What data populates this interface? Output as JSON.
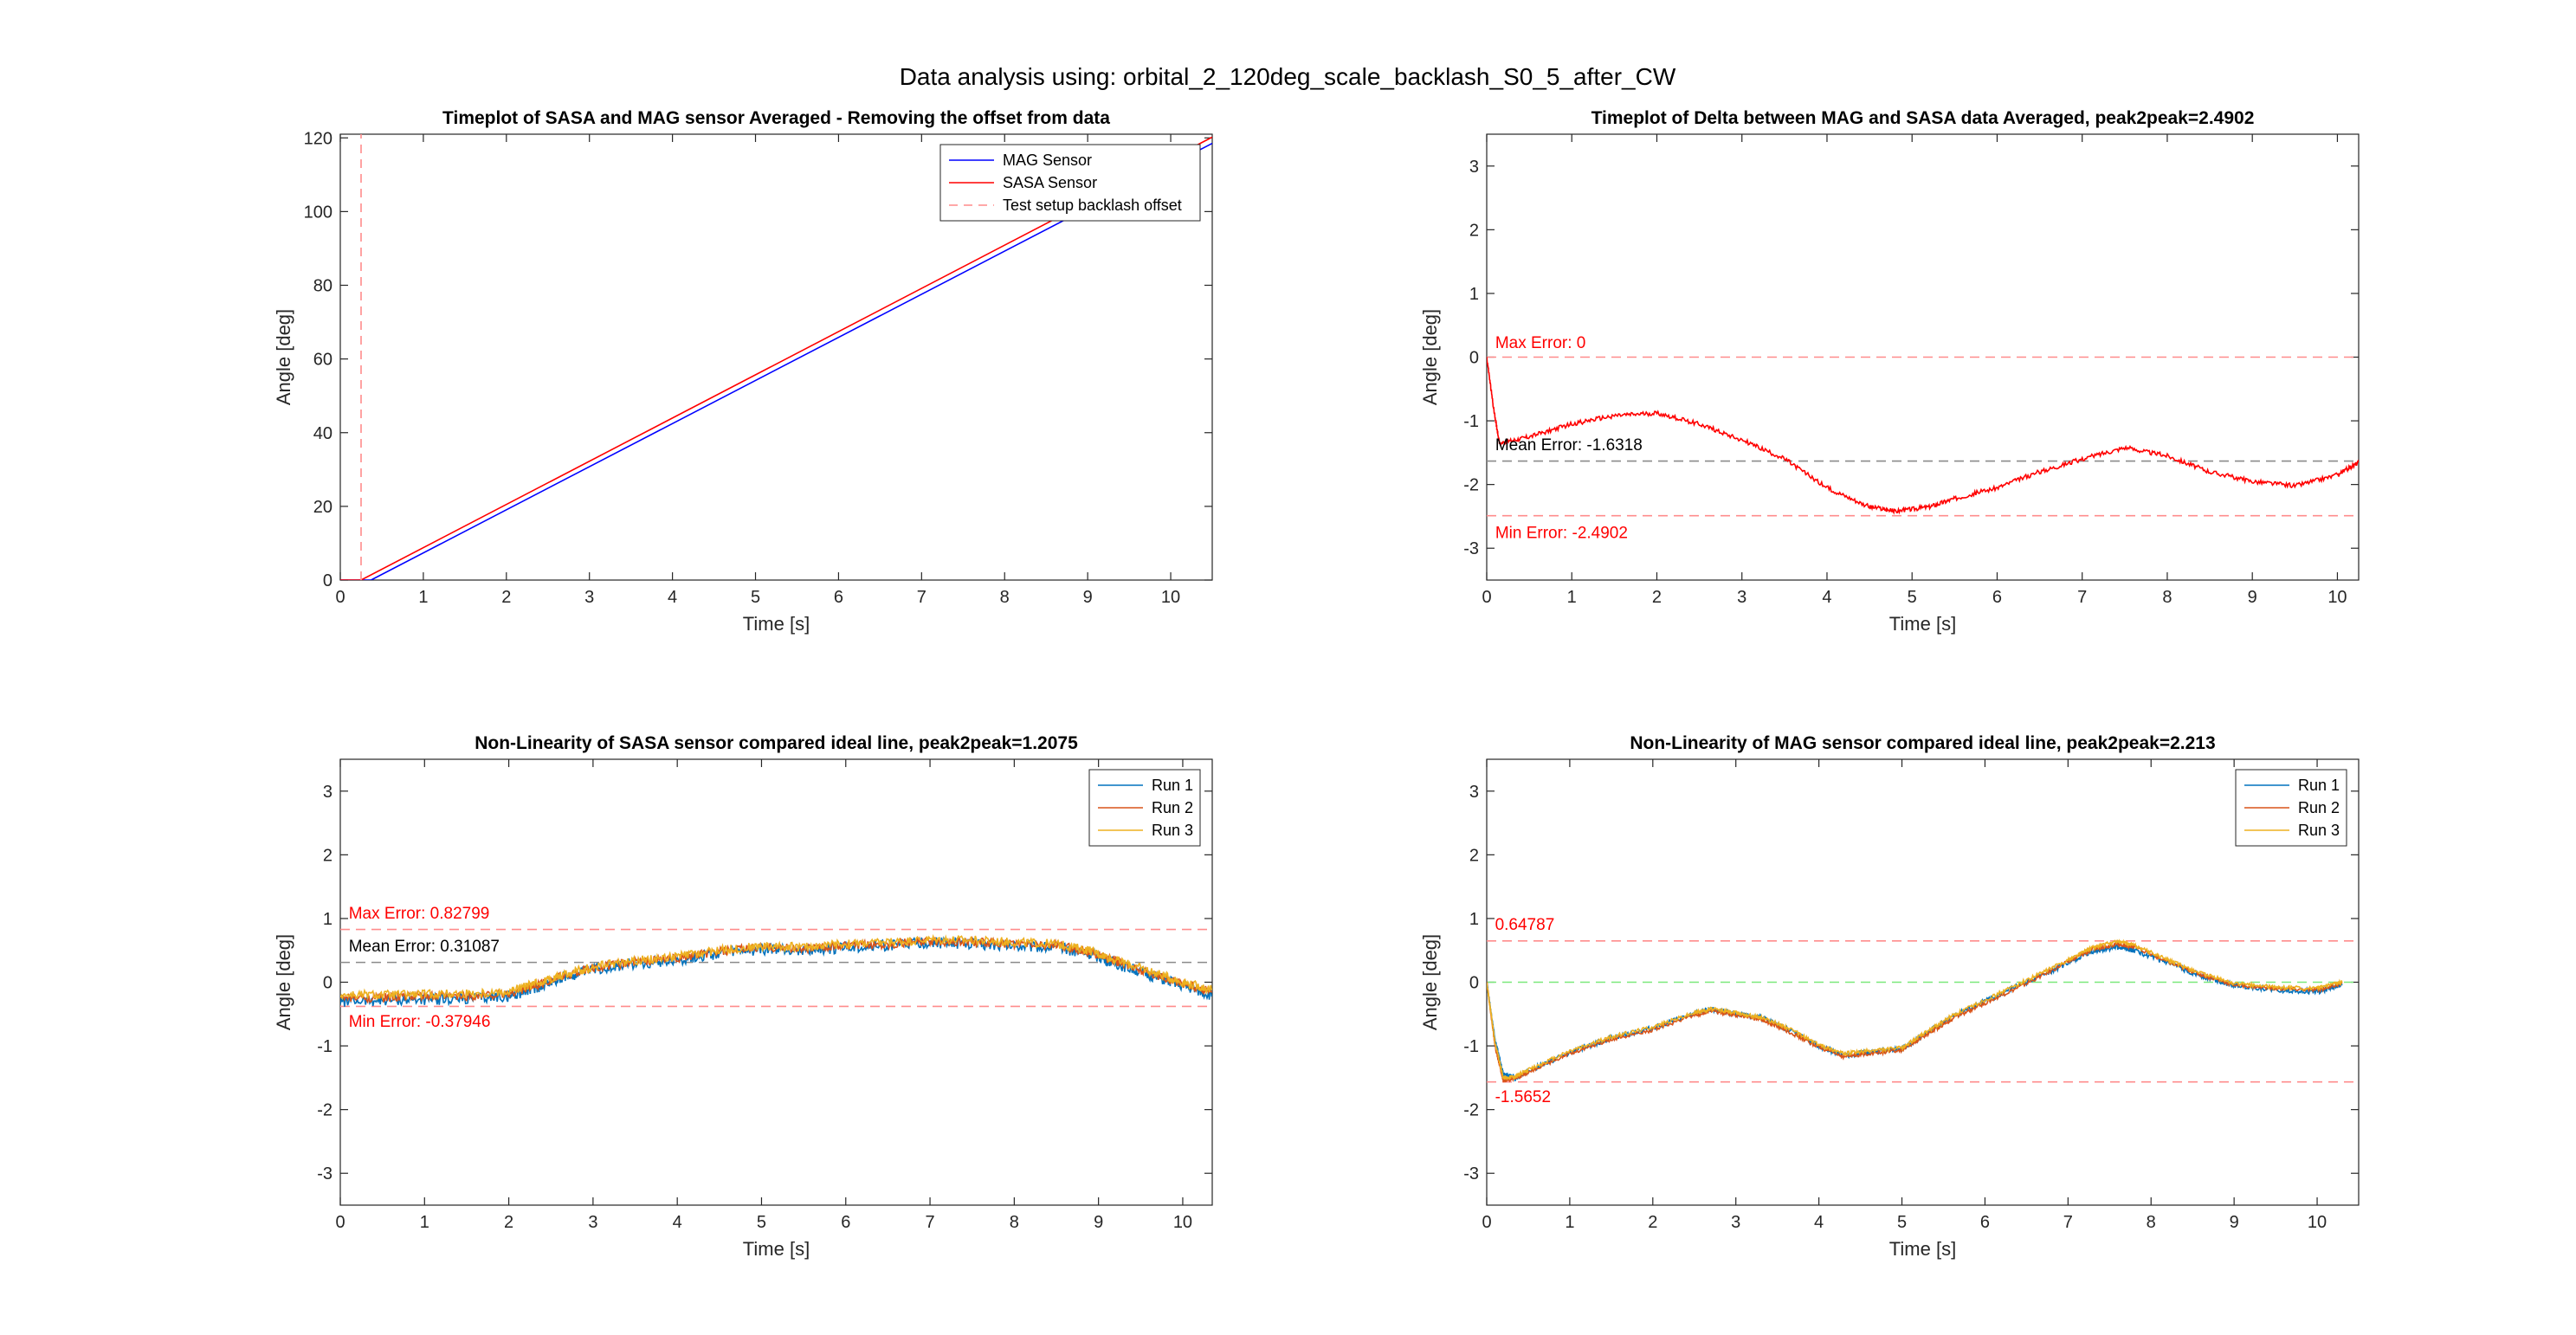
{
  "figure_title": "Data analysis using: orbital_2_120deg_scale_backlash_S0_5_after_CW",
  "chart_data": [
    {
      "id": "p1",
      "type": "line",
      "title": "Timeplot of SASA and MAG sensor Averaged - Removing the offset from data",
      "xlabel": "Time [s]",
      "ylabel": "Angle [deg]",
      "xlim": [
        0,
        10.5
      ],
      "ylim": [
        0,
        121
      ],
      "xticks": [
        0,
        1,
        2,
        3,
        4,
        5,
        6,
        7,
        8,
        9,
        10
      ],
      "yticks": [
        0,
        20,
        40,
        60,
        80,
        100,
        120
      ],
      "legend_position": "top-right",
      "series": [
        {
          "name": "MAG Sensor",
          "color": "#0000ff",
          "dash": "",
          "x": [
            0,
            0.37,
            10.5
          ],
          "y": [
            0,
            0,
            118.5
          ]
        },
        {
          "name": "SASA Sensor",
          "color": "#ff0000",
          "dash": "",
          "x": [
            0,
            0.25,
            10.5
          ],
          "y": [
            0,
            0,
            120.2
          ]
        },
        {
          "name": "Test setup backlash offset",
          "color": "#ff8c8c",
          "dash": "10,7",
          "x": [
            0.25,
            0.25
          ],
          "y": [
            0,
            121
          ]
        }
      ],
      "hlines": [],
      "annotations": []
    },
    {
      "id": "p2",
      "type": "line",
      "title": "Timeplot of Delta between MAG and SASA data Averaged, peak2peak=2.4902",
      "xlabel": "Time [s]",
      "ylabel": "Angle [deg]",
      "xlim": [
        0,
        10.25
      ],
      "ylim": [
        -3.5,
        3.5
      ],
      "xticks": [
        0,
        1,
        2,
        3,
        4,
        5,
        6,
        7,
        8,
        9,
        10
      ],
      "yticks": [
        -3,
        -2,
        -1,
        0,
        1,
        2,
        3
      ],
      "series": [
        {
          "name": "",
          "color": "#ff0000",
          "dash": "",
          "noise": 0.035,
          "x": [
            0,
            0.08,
            0.15,
            0.5,
            1.0,
            1.5,
            2.0,
            2.5,
            3.0,
            3.5,
            4.0,
            4.5,
            4.8,
            5.2,
            5.5,
            6.0,
            6.5,
            7.0,
            7.5,
            8.0,
            8.5,
            9.0,
            9.5,
            10.0,
            10.25
          ],
          "y": [
            0,
            -0.8,
            -1.35,
            -1.25,
            -1.05,
            -0.92,
            -0.88,
            -1.05,
            -1.3,
            -1.6,
            -2.05,
            -2.35,
            -2.42,
            -2.35,
            -2.22,
            -2.05,
            -1.8,
            -1.6,
            -1.42,
            -1.55,
            -1.8,
            -1.95,
            -2.02,
            -1.85,
            -1.65
          ]
        }
      ],
      "hlines": [
        {
          "y": 0,
          "color": "#ff8c8c"
        },
        {
          "y": -1.6318,
          "color": "#8a8a8a"
        },
        {
          "y": -2.4902,
          "color": "#ff8c8c"
        }
      ],
      "annotations": [
        {
          "text": "Max Error: 0",
          "x": 0.1,
          "y": 0.14,
          "color": "#ff0000"
        },
        {
          "text": "Mean Error: -1.6318",
          "x": 0.1,
          "y": -1.46,
          "color": "#000000"
        },
        {
          "text": "Min Error: -2.4902",
          "x": 0.1,
          "y": -2.84,
          "color": "#ff0000"
        }
      ]
    },
    {
      "id": "p3",
      "type": "line",
      "title": "Non-Linearity of SASA sensor compared ideal line, peak2peak=1.2075",
      "xlabel": "Time [s]",
      "ylabel": "Angle [deg]",
      "xlim": [
        0,
        10.35
      ],
      "ylim": [
        -3.5,
        3.5
      ],
      "xticks": [
        0,
        1,
        2,
        3,
        4,
        5,
        6,
        7,
        8,
        9,
        10
      ],
      "yticks": [
        -3,
        -2,
        -1,
        0,
        1,
        2,
        3
      ],
      "legend_position": "top-right",
      "series": [
        {
          "name": "Run 1",
          "color": "#0072bd",
          "dash": "",
          "noise": 0.09,
          "x": [
            0,
            0.5,
            1.0,
            1.5,
            2.0,
            2.3,
            2.6,
            3.0,
            3.5,
            4.0,
            4.5,
            5.0,
            5.5,
            6.0,
            6.5,
            7.0,
            7.5,
            8.0,
            8.5,
            8.9,
            9.2,
            9.6,
            10.0,
            10.35
          ],
          "y": [
            -0.3,
            -0.28,
            -0.27,
            -0.26,
            -0.22,
            -0.1,
            0.05,
            0.2,
            0.3,
            0.35,
            0.45,
            0.52,
            0.5,
            0.55,
            0.58,
            0.62,
            0.6,
            0.58,
            0.55,
            0.45,
            0.3,
            0.12,
            -0.05,
            -0.2
          ]
        },
        {
          "name": "Run 2",
          "color": "#d95319",
          "dash": "",
          "noise": 0.07,
          "x": [
            0,
            0.5,
            1.0,
            1.5,
            2.0,
            2.3,
            2.6,
            3.0,
            3.5,
            4.0,
            4.5,
            5.0,
            5.5,
            6.0,
            6.5,
            7.0,
            7.5,
            8.0,
            8.5,
            8.9,
            9.2,
            9.6,
            10.0,
            10.35
          ],
          "y": [
            -0.25,
            -0.24,
            -0.22,
            -0.22,
            -0.18,
            -0.06,
            0.08,
            0.22,
            0.32,
            0.38,
            0.48,
            0.55,
            0.53,
            0.57,
            0.6,
            0.64,
            0.63,
            0.6,
            0.58,
            0.48,
            0.33,
            0.15,
            -0.02,
            -0.15
          ]
        },
        {
          "name": "Run 3",
          "color": "#edb120",
          "dash": "",
          "noise": 0.07,
          "x": [
            0,
            0.5,
            1.0,
            1.5,
            2.0,
            2.3,
            2.6,
            3.0,
            3.5,
            4.0,
            4.5,
            5.0,
            5.5,
            6.0,
            6.5,
            7.0,
            7.5,
            8.0,
            8.5,
            8.9,
            9.2,
            9.6,
            10.0,
            10.35
          ],
          "y": [
            -0.2,
            -0.2,
            -0.19,
            -0.18,
            -0.15,
            -0.03,
            0.1,
            0.24,
            0.34,
            0.4,
            0.5,
            0.57,
            0.55,
            0.6,
            0.63,
            0.67,
            0.66,
            0.63,
            0.6,
            0.5,
            0.35,
            0.18,
            0.0,
            -0.12
          ]
        }
      ],
      "hlines": [
        {
          "y": 0.82799,
          "color": "#ff8c8c"
        },
        {
          "y": 0.31087,
          "color": "#8a8a8a"
        },
        {
          "y": -0.37946,
          "color": "#ff8c8c"
        }
      ],
      "annotations": [
        {
          "text": "Max Error: 0.82799",
          "x": 0.1,
          "y": 1.0,
          "color": "#ff0000"
        },
        {
          "text": "Mean Error: 0.31087",
          "x": 0.1,
          "y": 0.48,
          "color": "#000000"
        },
        {
          "text": "Min Error: -0.37946",
          "x": 0.1,
          "y": -0.7,
          "color": "#ff0000"
        }
      ]
    },
    {
      "id": "p4",
      "type": "line",
      "title": "Non-Linearity of MAG sensor compared ideal line, peak2peak=2.213",
      "xlabel": "Time [s]",
      "ylabel": "Angle [deg]",
      "xlim": [
        0,
        10.5
      ],
      "ylim": [
        -3.5,
        3.5
      ],
      "xticks": [
        0,
        1,
        2,
        3,
        4,
        5,
        6,
        7,
        8,
        9,
        10
      ],
      "yticks": [
        -3,
        -2,
        -1,
        0,
        1,
        2,
        3
      ],
      "legend_position": "top-right",
      "series": [
        {
          "name": "Run 1",
          "color": "#0072bd",
          "dash": "",
          "noise": 0.04,
          "x": [
            0,
            0.1,
            0.2,
            0.35,
            0.5,
            1.0,
            1.5,
            2.0,
            2.5,
            2.7,
            3.0,
            3.3,
            3.6,
            4.0,
            4.3,
            4.6,
            5.0,
            5.3,
            5.6,
            6.0,
            6.5,
            7.0,
            7.3,
            7.6,
            7.8,
            8.2,
            8.6,
            9.0,
            9.5,
            10.0,
            10.3
          ],
          "y": [
            0,
            -0.9,
            -1.45,
            -1.5,
            -1.4,
            -1.1,
            -0.88,
            -0.72,
            -0.5,
            -0.42,
            -0.5,
            -0.55,
            -0.72,
            -1.0,
            -1.15,
            -1.1,
            -1.05,
            -0.8,
            -0.55,
            -0.3,
            0.0,
            0.3,
            0.48,
            0.55,
            0.5,
            0.3,
            0.1,
            -0.05,
            -0.12,
            -0.15,
            -0.05
          ]
        },
        {
          "name": "Run 2",
          "color": "#d95319",
          "dash": "",
          "noise": 0.03,
          "x": [
            0,
            0.1,
            0.2,
            0.35,
            0.5,
            1.0,
            1.5,
            2.0,
            2.5,
            2.7,
            3.0,
            3.3,
            3.6,
            4.0,
            4.3,
            4.6,
            5.0,
            5.3,
            5.6,
            6.0,
            6.5,
            7.0,
            7.3,
            7.6,
            7.8,
            8.2,
            8.6,
            9.0,
            9.5,
            10.0,
            10.3
          ],
          "y": [
            0,
            -1.0,
            -1.55,
            -1.5,
            -1.42,
            -1.12,
            -0.9,
            -0.75,
            -0.52,
            -0.45,
            -0.52,
            -0.58,
            -0.75,
            -1.02,
            -1.17,
            -1.12,
            -1.07,
            -0.82,
            -0.58,
            -0.33,
            -0.02,
            0.32,
            0.52,
            0.6,
            0.55,
            0.32,
            0.12,
            -0.04,
            -0.1,
            -0.12,
            -0.02
          ]
        },
        {
          "name": "Run 3",
          "color": "#edb120",
          "dash": "",
          "noise": 0.03,
          "x": [
            0,
            0.1,
            0.2,
            0.35,
            0.5,
            1.0,
            1.5,
            2.0,
            2.5,
            2.7,
            3.0,
            3.3,
            3.6,
            4.0,
            4.3,
            4.6,
            5.0,
            5.3,
            5.6,
            6.0,
            6.5,
            7.0,
            7.3,
            7.6,
            7.8,
            8.2,
            8.6,
            9.0,
            9.5,
            10.0,
            10.3
          ],
          "y": [
            0,
            -0.95,
            -1.5,
            -1.48,
            -1.38,
            -1.08,
            -0.86,
            -0.7,
            -0.48,
            -0.42,
            -0.48,
            -0.55,
            -0.7,
            -0.98,
            -1.12,
            -1.08,
            -1.03,
            -0.78,
            -0.53,
            -0.28,
            0.03,
            0.35,
            0.55,
            0.64,
            0.58,
            0.35,
            0.14,
            -0.02,
            -0.08,
            -0.1,
            0.0
          ]
        }
      ],
      "hlines": [
        {
          "y": 0.64787,
          "color": "#ff8c8c"
        },
        {
          "y": 0,
          "color": "#7be87b"
        },
        {
          "y": -1.5652,
          "color": "#ff8c8c"
        }
      ],
      "annotations": [
        {
          "text": "0.64787",
          "x": 0.1,
          "y": 0.82,
          "color": "#ff0000"
        },
        {
          "text": "-1.5652",
          "x": 0.1,
          "y": -1.88,
          "color": "#ff0000"
        }
      ]
    }
  ]
}
